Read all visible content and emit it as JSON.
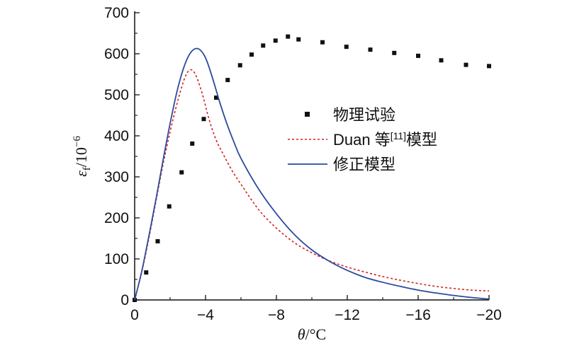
{
  "chart_data": {
    "type": "line",
    "xlabel": "θ/°C",
    "ylabel": "εf/10−6",
    "xlim": [
      0,
      -20
    ],
    "ylim": [
      0,
      700
    ],
    "x_ticks": [
      "0",
      "−4",
      "−8",
      "−12",
      "−16",
      "−20"
    ],
    "y_ticks": [
      "0",
      "100",
      "200",
      "300",
      "400",
      "500",
      "600",
      "700"
    ],
    "grid": false,
    "legend_position": "center-right",
    "series": [
      {
        "name": "物理试验",
        "style": "markers",
        "marker": "square",
        "color": "#111111",
        "x": [
          0,
          -0.65,
          -1.3,
          -1.95,
          -2.65,
          -3.25,
          -3.9,
          -4.6,
          -5.25,
          -5.95,
          -6.6,
          -7.25,
          -7.95,
          -8.65,
          -9.25,
          -10.6,
          -11.95,
          -13.3,
          -14.65,
          -16.0,
          -17.3,
          -18.7,
          -20.0
        ],
        "y": [
          0,
          67,
          143,
          228,
          311,
          381,
          441,
          493,
          536,
          572,
          598,
          620,
          632,
          642,
          635,
          628,
          617,
          610,
          602,
          595,
          584,
          573,
          570
        ]
      },
      {
        "name": "Duan 等[11]模型",
        "style": "dashed",
        "color": "#d62020",
        "x": [
          0,
          -0.4,
          -0.8,
          -1.2,
          -1.6,
          -2.0,
          -2.4,
          -2.8,
          -3.1,
          -3.4,
          -3.8,
          -4.2,
          -4.6,
          -5.0,
          -5.5,
          -6.0,
          -7.0,
          -8.0,
          -9.0,
          -10.0,
          -11.0,
          -12.0,
          -13.0,
          -14.0,
          -15.0,
          -16.0,
          -17.0,
          -18.0,
          -19.0,
          -20.0
        ],
        "y": [
          0,
          68,
          150,
          240,
          330,
          410,
          480,
          538,
          560,
          552,
          505,
          440,
          390,
          355,
          315,
          282,
          220,
          175,
          140,
          115,
          95,
          80,
          68,
          57,
          48,
          40,
          33,
          28,
          24,
          22
        ]
      },
      {
        "name": "修正模型",
        "style": "solid",
        "color": "#2d4a9e",
        "x": [
          0,
          -0.4,
          -0.8,
          -1.2,
          -1.6,
          -2.0,
          -2.4,
          -2.8,
          -3.2,
          -3.6,
          -4.0,
          -4.4,
          -4.8,
          -5.2,
          -5.6,
          -6.0,
          -7.0,
          -8.0,
          -9.0,
          -10.0,
          -11.0,
          -12.0,
          -13.0,
          -14.0,
          -15.0,
          -16.0,
          -17.0,
          -18.0,
          -19.0,
          -20.0
        ],
        "y": [
          0,
          70,
          155,
          245,
          340,
          430,
          510,
          570,
          605,
          612,
          590,
          540,
          482,
          430,
          385,
          345,
          270,
          210,
          160,
          122,
          94,
          72,
          55,
          43,
          33,
          24,
          17,
          11,
          6,
          2
        ]
      }
    ]
  }
}
